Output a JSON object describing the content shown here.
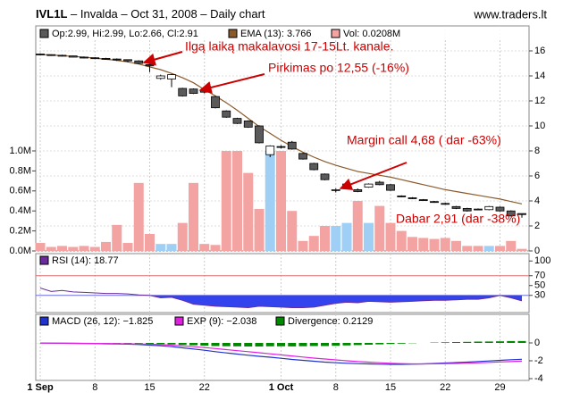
{
  "chart_data": [
    {
      "type": "candlestick",
      "symbol": "IVL1L",
      "title": " – Invalda – Oct 31, 2008 – Daily chart",
      "source": "www.traders.lt",
      "ohlc_label": "Op:2.99, Hi:2.99, Lo:2.66, Cl:2.91",
      "categories": [
        "1 Sep",
        null,
        null,
        null,
        null,
        "8",
        null,
        null,
        null,
        null,
        "15",
        null,
        null,
        null,
        null,
        "22",
        null,
        null,
        null,
        null,
        null,
        null,
        "1 Oct",
        null,
        null,
        null,
        null,
        "8",
        null,
        null,
        null,
        null,
        "15",
        null,
        null,
        null,
        null,
        "22",
        null,
        null,
        null,
        null,
        "29",
        null,
        null
      ],
      "open": [
        15.75,
        15.7,
        15.65,
        15.6,
        15.5,
        15.45,
        15.4,
        15.35,
        15.3,
        15.2,
        14.9,
        13.8,
        13.75,
        13.0,
        12.95,
        12.85,
        12.35,
        11.2,
        10.6,
        10.4,
        10.0,
        7.7,
        8.35,
        8.7,
        7.8,
        7.0,
        6.15,
        4.9,
        5.1,
        4.9,
        5.1,
        5.5,
        5.3,
        4.4,
        4.25,
        4.1,
        3.95,
        3.8,
        3.55,
        3.4,
        3.35,
        3.3,
        3.5,
        3.2,
        2.99
      ],
      "high": [
        15.8,
        15.72,
        15.7,
        15.62,
        15.55,
        15.5,
        15.45,
        15.4,
        15.3,
        15.25,
        15.3,
        14.1,
        14.15,
        13.05,
        13.0,
        12.9,
        12.4,
        11.25,
        10.65,
        10.45,
        10.05,
        8.45,
        8.45,
        8.8,
        7.85,
        7.05,
        6.2,
        5.0,
        5.4,
        5.0,
        5.4,
        5.6,
        5.35,
        4.45,
        4.3,
        4.15,
        4.0,
        3.85,
        3.6,
        3.45,
        3.4,
        3.6,
        3.55,
        3.25,
        2.99
      ],
      "low": [
        15.7,
        15.6,
        15.55,
        15.5,
        15.4,
        15.35,
        15.3,
        15.2,
        15.1,
        14.95,
        14.3,
        13.7,
        13.1,
        12.35,
        12.55,
        12.6,
        11.4,
        10.65,
        10.15,
        9.85,
        8.6,
        7.5,
        8.2,
        8.1,
        7.3,
        6.45,
        5.65,
        4.68,
        5.0,
        4.7,
        5.05,
        5.25,
        4.8,
        4.3,
        4.15,
        4.0,
        3.85,
        3.7,
        3.35,
        3.15,
        3.25,
        3.25,
        3.15,
        2.75,
        2.66
      ],
      "close": [
        15.7,
        15.65,
        15.6,
        15.5,
        15.45,
        15.4,
        15.35,
        15.3,
        15.2,
        15.0,
        14.8,
        14.0,
        14.1,
        12.4,
        12.6,
        12.7,
        11.45,
        10.7,
        10.2,
        9.9,
        8.65,
        8.4,
        8.3,
        8.15,
        7.35,
        6.5,
        5.7,
        4.9,
        5.35,
        4.75,
        5.35,
        5.3,
        4.85,
        4.35,
        4.2,
        4.05,
        3.9,
        3.75,
        3.4,
        3.2,
        3.3,
        3.55,
        3.2,
        2.8,
        2.91
      ],
      "up_color": "#ffffff",
      "down_color": "#5a5a5a",
      "ylim": [
        0,
        18
      ],
      "yticks": [
        0,
        2,
        4,
        6,
        8,
        10,
        12,
        14,
        16
      ],
      "grid": true,
      "ema": {
        "name": "EMA (13): 3.766",
        "color": "#8b5a2b",
        "values": [
          15.7,
          15.68,
          15.62,
          15.56,
          15.5,
          15.42,
          15.33,
          15.24,
          15.12,
          14.95,
          14.72,
          14.5,
          14.2,
          13.85,
          13.45,
          12.9,
          12.4,
          11.85,
          11.25,
          10.6,
          9.95,
          9.4,
          8.85,
          8.35,
          7.9,
          7.5,
          7.15,
          6.85,
          6.6,
          6.35,
          6.2,
          6.05,
          5.9,
          5.7,
          5.5,
          5.3,
          5.1,
          4.9,
          4.75,
          4.6,
          4.45,
          4.3,
          4.15,
          3.95,
          3.766
        ]
      },
      "volume": {
        "name": "Vol: 0.0208M",
        "color": "#f4a3a3",
        "up_color": "#9fcff5",
        "down_color": "#f4a3a3",
        "values": [
          0.08,
          0.04,
          0.05,
          0.04,
          0.05,
          0.04,
          0.09,
          0.26,
          0.08,
          0.68,
          0.17,
          0.07,
          0.07,
          0.28,
          0.68,
          0.07,
          0.06,
          1.0,
          1.0,
          0.78,
          0.42,
          1.0,
          1.0,
          0.4,
          0.1,
          0.15,
          0.25,
          0.25,
          0.28,
          0.5,
          0.28,
          0.45,
          0.28,
          0.2,
          0.14,
          0.13,
          0.12,
          0.13,
          0.1,
          0.05,
          0.05,
          0.05,
          0.05,
          0.1,
          0.0208
        ],
        "ylim": [
          0,
          2.25
        ],
        "yticks": [
          {
            "value": 0,
            "label": "0.0M"
          },
          {
            "value": 0.2,
            "label": "0.2M"
          },
          {
            "value": 0.4,
            "label": "0.4M"
          },
          {
            "value": 0.6,
            "label": "0.6M"
          },
          {
            "value": 0.8,
            "label": "0.8M"
          },
          {
            "value": 1.0,
            "label": "1.0M"
          }
        ]
      },
      "annotations": [
        {
          "text": "Ilgą laiką makalavosi 17-15Lt. kanale."
        },
        {
          "text": "Pirkimas po 12,55 (-16%)"
        },
        {
          "text": "Margin call 4,68 ( dar -63%)"
        },
        {
          "text": "Dabar 2,91 (dar -38%)"
        }
      ]
    },
    {
      "type": "rsi",
      "name": "RSI (14): 18.77",
      "color": "#6a2c9a",
      "fill": "#3344ee",
      "values": [
        45,
        38,
        40,
        37,
        36,
        35,
        34,
        34,
        33,
        31,
        30,
        25,
        26,
        20,
        12,
        10,
        8,
        7,
        6,
        5,
        8,
        7,
        6,
        5,
        5,
        6,
        10,
        14,
        16,
        15,
        18,
        17,
        16,
        17,
        18,
        19,
        20,
        20,
        21,
        22,
        22,
        25,
        30,
        25,
        18.77
      ],
      "ylim": [
        -5,
        115
      ],
      "yticks": [
        100,
        70,
        50,
        30
      ],
      "lines": [
        {
          "value": 70,
          "color": "#e07070"
        },
        {
          "value": 30,
          "color": "#7070e0"
        }
      ]
    },
    {
      "type": "macd",
      "ylim": [
        -4.2,
        3.2
      ],
      "yticks": [
        0,
        -2,
        -4
      ],
      "series": [
        {
          "name": "MACD (26, 12): −1.825",
          "color": "#2233cc",
          "kind": "line",
          "values": [
            -0.02,
            -0.03,
            -0.04,
            -0.05,
            -0.06,
            -0.08,
            -0.1,
            -0.12,
            -0.14,
            -0.18,
            -0.25,
            -0.32,
            -0.42,
            -0.55,
            -0.68,
            -0.82,
            -0.98,
            -1.12,
            -1.25,
            -1.38,
            -1.5,
            -1.6,
            -1.72,
            -1.85,
            -1.95,
            -2.05,
            -2.15,
            -2.22,
            -2.28,
            -2.32,
            -2.35,
            -2.38,
            -2.4,
            -2.4,
            -2.38,
            -2.35,
            -2.3,
            -2.25,
            -2.2,
            -2.15,
            -2.08,
            -2.02,
            -1.95,
            -1.88,
            -1.825
          ]
        },
        {
          "name": "EXP (9): −2.038",
          "color": "#e020e0",
          "kind": "line",
          "values": [
            -0.01,
            -0.02,
            -0.03,
            -0.04,
            -0.05,
            -0.06,
            -0.07,
            -0.08,
            -0.1,
            -0.12,
            -0.15,
            -0.19,
            -0.25,
            -0.33,
            -0.42,
            -0.52,
            -0.63,
            -0.75,
            -0.87,
            -0.98,
            -1.1,
            -1.22,
            -1.34,
            -1.46,
            -1.58,
            -1.7,
            -1.8,
            -1.9,
            -2.0,
            -2.08,
            -2.15,
            -2.22,
            -2.28,
            -2.32,
            -2.35,
            -2.35,
            -2.34,
            -2.32,
            -2.3,
            -2.27,
            -2.23,
            -2.18,
            -2.13,
            -2.09,
            -2.038
          ]
        },
        {
          "name": "Divergence: 0.2129",
          "color": "#008800",
          "kind": "bar",
          "values": [
            -0.01,
            -0.01,
            -0.01,
            -0.01,
            -0.01,
            -0.02,
            -0.03,
            -0.04,
            -0.04,
            -0.06,
            -0.1,
            -0.13,
            -0.17,
            -0.22,
            -0.26,
            -0.3,
            -0.35,
            -0.37,
            -0.38,
            -0.4,
            -0.4,
            -0.38,
            -0.38,
            -0.39,
            -0.37,
            -0.35,
            -0.35,
            -0.32,
            -0.28,
            -0.24,
            -0.2,
            -0.16,
            -0.12,
            -0.08,
            -0.03,
            0,
            0.04,
            0.07,
            0.1,
            0.12,
            0.15,
            0.16,
            0.18,
            0.21,
            0.2129
          ]
        }
      ]
    }
  ]
}
